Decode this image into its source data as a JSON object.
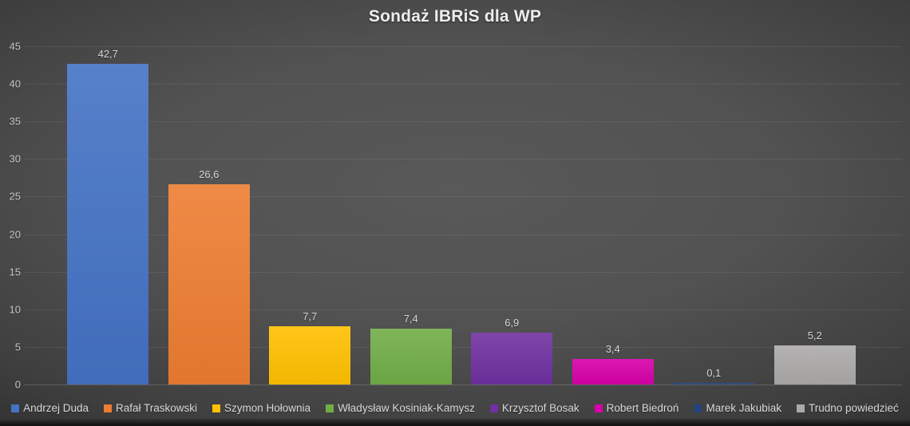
{
  "title": "Sondaż IBRiS dla WP",
  "chart_data": {
    "type": "bar",
    "title": "Sondaż IBRiS dla WP",
    "categories": [
      "Andrzej Duda",
      "Rafał Traskowski",
      "Szymon Hołownia",
      "Władysław Kosiniak-Kamysz",
      "Krzysztof Bosak",
      "Robert Biedroń",
      "Marek Jakubiak",
      "Trudno powiedzieć"
    ],
    "values": [
      42.7,
      26.6,
      7.7,
      7.4,
      6.9,
      3.4,
      0.1,
      5.2
    ],
    "value_labels": [
      "42,7",
      "26,6",
      "7,7",
      "7,4",
      "6,9",
      "3,4",
      "0,1",
      "5,2"
    ],
    "colors": [
      "#4472C4",
      "#ED7D31",
      "#FFC000",
      "#70AD47",
      "#7030A0",
      "#D600A8",
      "#24427E",
      "#ACA9A9"
    ],
    "xlabel": "",
    "ylabel": "",
    "ylim": [
      0,
      45
    ],
    "y_ticks": [
      0,
      5,
      10,
      15,
      20,
      25,
      30,
      35,
      40,
      45
    ],
    "grid": true,
    "legend_position": "bottom",
    "background_color": "#4a4a4a",
    "text_color": "#dadada"
  }
}
